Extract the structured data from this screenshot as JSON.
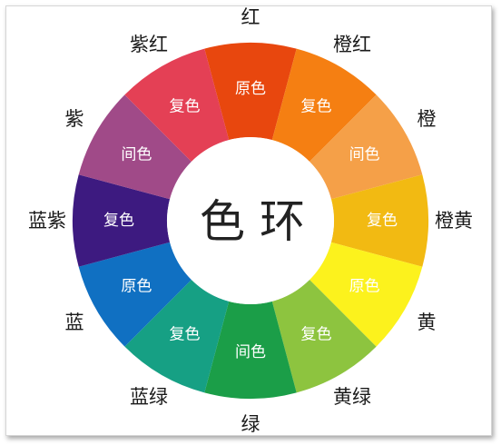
{
  "wheel": {
    "title": "色 环",
    "segments": [
      {
        "outer": "红",
        "inner": "原色",
        "color": "#E8470E"
      },
      {
        "outer": "橙红",
        "inner": "复色",
        "color": "#F57F12"
      },
      {
        "outer": "橙",
        "inner": "间色",
        "color": "#F5A048"
      },
      {
        "outer": "橙黄",
        "inner": "复色",
        "color": "#F2BA12"
      },
      {
        "outer": "黄",
        "inner": "原色",
        "color": "#FCF21D"
      },
      {
        "outer": "黄绿",
        "inner": "复色",
        "color": "#8DC43F"
      },
      {
        "outer": "绿",
        "inner": "间色",
        "color": "#1B9E48"
      },
      {
        "outer": "蓝绿",
        "inner": "复色",
        "color": "#16A084"
      },
      {
        "outer": "蓝",
        "inner": "原色",
        "color": "#1070C2"
      },
      {
        "outer": "蓝紫",
        "inner": "复色",
        "color": "#3D1A80"
      },
      {
        "outer": "紫",
        "inner": "间色",
        "color": "#A04A88"
      },
      {
        "outer": "紫红",
        "inner": "复色",
        "color": "#E44055"
      }
    ]
  }
}
